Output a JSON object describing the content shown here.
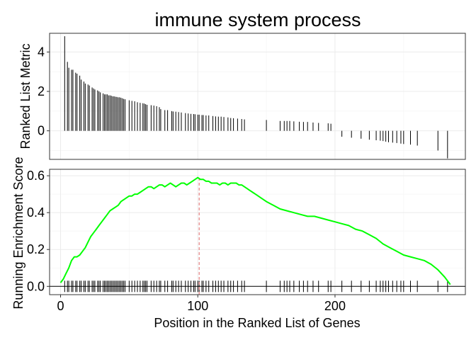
{
  "chart_data": {
    "type": "line",
    "title": "immune system process",
    "xlabel": "Position in the Ranked List of Genes",
    "xlim": [
      -8,
      295
    ],
    "xticks": [
      0,
      100,
      200
    ],
    "grid": true,
    "legend": "none",
    "panels": [
      {
        "name": "ranked-metric",
        "type": "bar",
        "ylabel": "Ranked List Metric",
        "ylim": [
          -1.45,
          4.95
        ],
        "yticks": [
          0,
          2,
          4
        ],
        "gene_positions": [
          3,
          5,
          6,
          8,
          9,
          11,
          12,
          14,
          15,
          17,
          18,
          20,
          21,
          23,
          24,
          25,
          27,
          28,
          29,
          31,
          32,
          33,
          34,
          35,
          36,
          37,
          38,
          39,
          40,
          41,
          42,
          43,
          44,
          45,
          46,
          47,
          50,
          52,
          54,
          56,
          58,
          60,
          61,
          62,
          63,
          66,
          68,
          70,
          72,
          73,
          76,
          78,
          81,
          82,
          84,
          86,
          88,
          91,
          93,
          95,
          97,
          98,
          100,
          101,
          103,
          104,
          106,
          108,
          111,
          113,
          115,
          117,
          119,
          122,
          124,
          126,
          129,
          132,
          134,
          150,
          160,
          163,
          165,
          167,
          170,
          174,
          177,
          180,
          184,
          188,
          195,
          197,
          205,
          212,
          219,
          225,
          230,
          233,
          235,
          237,
          239,
          242,
          245,
          248,
          250,
          255,
          260,
          275,
          282
        ],
        "metric_values": [
          4.8,
          3.5,
          3.2,
          3.1,
          3.1,
          2.95,
          2.9,
          2.8,
          2.6,
          2.5,
          2.4,
          2.35,
          2.3,
          2.2,
          2.15,
          2.1,
          2.05,
          2.0,
          1.95,
          1.9,
          1.85,
          1.85,
          1.85,
          1.8,
          1.8,
          1.78,
          1.75,
          1.75,
          1.73,
          1.72,
          1.7,
          1.7,
          1.68,
          1.65,
          1.62,
          1.6,
          1.55,
          1.52,
          1.5,
          1.45,
          1.42,
          1.4,
          1.38,
          1.35,
          1.32,
          1.3,
          1.28,
          1.25,
          1.2,
          1.1,
          1.05,
          1.05,
          1.0,
          0.98,
          0.97,
          0.95,
          0.93,
          0.9,
          0.88,
          0.86,
          0.85,
          0.84,
          0.82,
          0.82,
          0.8,
          0.8,
          0.78,
          0.78,
          0.75,
          0.73,
          0.72,
          0.72,
          0.7,
          0.68,
          0.65,
          0.64,
          0.62,
          0.6,
          0.58,
          0.55,
          0.5,
          0.5,
          0.5,
          0.5,
          0.48,
          0.46,
          0.45,
          0.45,
          0.42,
          0.4,
          0.38,
          0.36,
          -0.3,
          -0.35,
          -0.4,
          -0.45,
          -0.48,
          -0.5,
          -0.52,
          -0.55,
          -0.58,
          -0.6,
          -0.62,
          -0.65,
          -0.67,
          -0.7,
          -0.75,
          -1.0,
          -1.4
        ]
      },
      {
        "name": "running-enrichment",
        "type": "line",
        "ylabel": "Running Enrichment Score",
        "ylim": [
          -0.045,
          0.635
        ],
        "yticks": [
          0.0,
          0.2,
          0.4,
          0.6
        ],
        "series": [
          {
            "color": "#00ff00",
            "x": [
              0,
              2,
              4,
              6,
              8,
              10,
              12,
              14,
              16,
              18,
              20,
              22,
              24,
              26,
              28,
              30,
              32,
              34,
              36,
              38,
              40,
              42,
              44,
              46,
              48,
              50,
              52,
              54,
              56,
              58,
              60,
              62,
              64,
              66,
              68,
              70,
              72,
              74,
              76,
              78,
              80,
              82,
              84,
              86,
              88,
              90,
              92,
              94,
              96,
              98,
              100,
              102,
              104,
              106,
              108,
              110,
              112,
              114,
              116,
              118,
              120,
              122,
              124,
              126,
              128,
              130,
              132,
              134,
              136,
              138,
              140,
              142,
              144,
              146,
              148,
              150,
              155,
              160,
              165,
              170,
              175,
              180,
              185,
              190,
              195,
              200,
              205,
              210,
              215,
              220,
              225,
              230,
              235,
              240,
              245,
              250,
              255,
              260,
              265,
              270,
              275,
              280,
              284
            ],
            "y": [
              0.02,
              0.04,
              0.07,
              0.1,
              0.14,
              0.16,
              0.16,
              0.17,
              0.19,
              0.21,
              0.24,
              0.27,
              0.29,
              0.31,
              0.33,
              0.35,
              0.37,
              0.39,
              0.41,
              0.42,
              0.43,
              0.44,
              0.46,
              0.47,
              0.48,
              0.49,
              0.49,
              0.5,
              0.5,
              0.51,
              0.52,
              0.53,
              0.54,
              0.54,
              0.53,
              0.54,
              0.55,
              0.55,
              0.54,
              0.55,
              0.56,
              0.55,
              0.54,
              0.55,
              0.56,
              0.56,
              0.55,
              0.56,
              0.57,
              0.58,
              0.59,
              0.58,
              0.58,
              0.57,
              0.57,
              0.56,
              0.56,
              0.56,
              0.55,
              0.56,
              0.56,
              0.55,
              0.56,
              0.56,
              0.56,
              0.55,
              0.55,
              0.54,
              0.53,
              0.52,
              0.51,
              0.5,
              0.49,
              0.48,
              0.47,
              0.46,
              0.44,
              0.42,
              0.41,
              0.4,
              0.39,
              0.38,
              0.38,
              0.37,
              0.36,
              0.35,
              0.34,
              0.33,
              0.31,
              0.3,
              0.28,
              0.26,
              0.23,
              0.21,
              0.19,
              0.17,
              0.16,
              0.15,
              0.14,
              0.12,
              0.09,
              0.05,
              0.01
            ]
          }
        ],
        "annotations": [
          {
            "type": "vline",
            "x": 101,
            "color": "#e06666"
          }
        ]
      }
    ]
  }
}
